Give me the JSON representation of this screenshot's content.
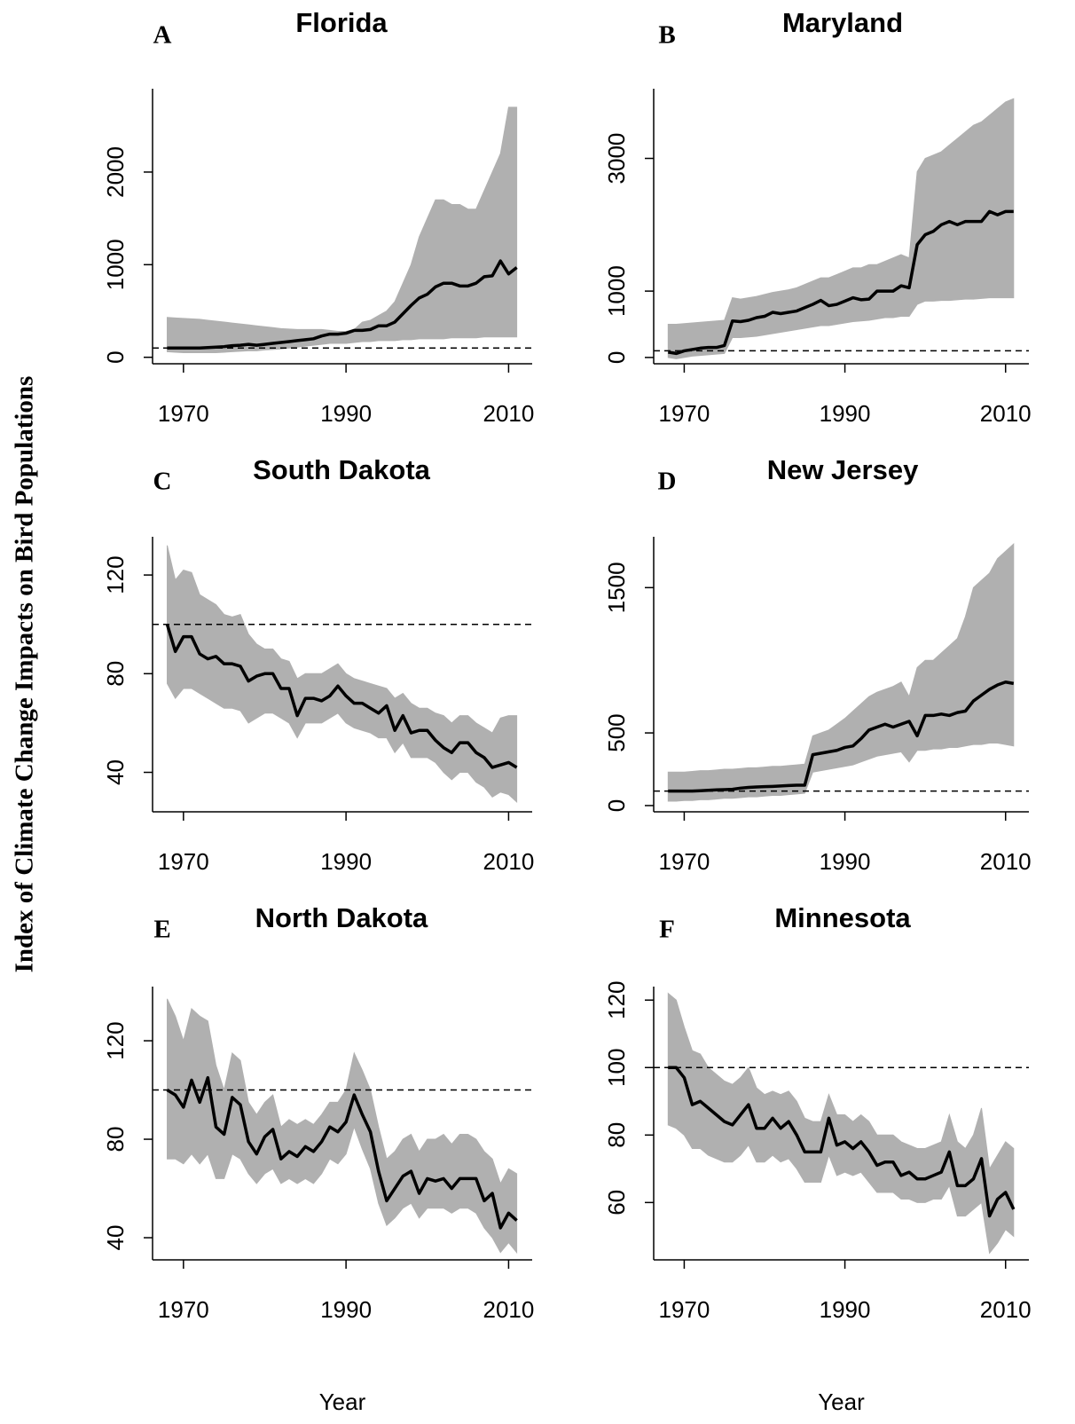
{
  "ylabel": "Index of Climate Change Impacts on Bird Populations",
  "chart_data": [
    {
      "type": "line",
      "label": "A",
      "title": "Florida",
      "color": "#000000",
      "band_color": "#b0b0b0",
      "baseline": 100,
      "x": [
        1968,
        1969,
        1970,
        1971,
        1972,
        1973,
        1974,
        1975,
        1976,
        1977,
        1978,
        1979,
        1980,
        1981,
        1982,
        1983,
        1984,
        1985,
        1986,
        1987,
        1988,
        1989,
        1990,
        1991,
        1992,
        1993,
        1994,
        1995,
        1996,
        1997,
        1998,
        1999,
        2000,
        2001,
        2002,
        2003,
        2004,
        2005,
        2006,
        2007,
        2008,
        2009,
        2010,
        2011
      ],
      "values": [
        100,
        100,
        100,
        100,
        100,
        105,
        110,
        115,
        125,
        130,
        140,
        130,
        140,
        150,
        160,
        170,
        180,
        190,
        200,
        230,
        250,
        250,
        260,
        290,
        290,
        300,
        340,
        340,
        380,
        470,
        560,
        640,
        680,
        760,
        800,
        800,
        770,
        770,
        800,
        870,
        880,
        1040,
        900,
        970
      ],
      "upper": [
        430,
        425,
        420,
        415,
        410,
        400,
        390,
        380,
        370,
        360,
        350,
        340,
        330,
        320,
        310,
        305,
        300,
        300,
        300,
        300,
        290,
        280,
        280,
        300,
        380,
        400,
        450,
        500,
        600,
        800,
        1000,
        1300,
        1500,
        1700,
        1700,
        1650,
        1650,
        1600,
        1600,
        1800,
        2000,
        2200,
        2700,
        2700
      ],
      "lower": [
        60,
        55,
        50,
        50,
        50,
        50,
        50,
        55,
        60,
        65,
        70,
        70,
        80,
        85,
        90,
        100,
        110,
        120,
        130,
        140,
        150,
        150,
        150,
        160,
        170,
        170,
        180,
        180,
        180,
        190,
        190,
        200,
        200,
        200,
        200,
        210,
        210,
        210,
        210,
        220,
        220,
        220,
        220,
        220
      ],
      "xlim": [
        1966.2,
        2012.9
      ],
      "ylim": [
        -70,
        2900
      ],
      "xticks": [
        1970,
        1990,
        2010
      ],
      "yticks": [
        0,
        1000,
        2000
      ]
    },
    {
      "type": "line",
      "label": "B",
      "title": "Maryland",
      "color": "#000000",
      "band_color": "#b0b0b0",
      "baseline": 100,
      "x": [
        1968,
        1969,
        1970,
        1971,
        1972,
        1973,
        1974,
        1975,
        1976,
        1977,
        1978,
        1979,
        1980,
        1981,
        1982,
        1983,
        1984,
        1985,
        1986,
        1987,
        1988,
        1989,
        1990,
        1991,
        1992,
        1993,
        1994,
        1995,
        1996,
        1997,
        1998,
        1999,
        2000,
        2001,
        2002,
        2003,
        2004,
        2005,
        2006,
        2007,
        2008,
        2009,
        2010,
        2011
      ],
      "values": [
        80,
        60,
        100,
        120,
        140,
        150,
        150,
        180,
        550,
        540,
        560,
        600,
        620,
        680,
        660,
        680,
        700,
        750,
        800,
        860,
        780,
        800,
        850,
        900,
        870,
        880,
        1000,
        1000,
        1000,
        1080,
        1050,
        1700,
        1850,
        1900,
        2000,
        2050,
        2000,
        2050,
        2050,
        2050,
        2200,
        2150,
        2200,
        2200
      ],
      "upper": [
        500,
        500,
        510,
        520,
        530,
        540,
        550,
        560,
        900,
        880,
        900,
        920,
        950,
        980,
        1000,
        1020,
        1050,
        1100,
        1150,
        1200,
        1200,
        1250,
        1300,
        1350,
        1350,
        1400,
        1400,
        1450,
        1500,
        1550,
        1500,
        2800,
        3000,
        3050,
        3100,
        3200,
        3300,
        3400,
        3500,
        3550,
        3650,
        3750,
        3850,
        3900
      ],
      "lower": [
        0,
        -20,
        0,
        20,
        30,
        40,
        50,
        60,
        300,
        300,
        310,
        320,
        340,
        360,
        380,
        400,
        420,
        440,
        460,
        480,
        480,
        500,
        520,
        540,
        550,
        560,
        580,
        600,
        600,
        620,
        620,
        800,
        850,
        850,
        860,
        860,
        870,
        880,
        880,
        890,
        900,
        900,
        900,
        900
      ],
      "xlim": [
        1966.2,
        2012.9
      ],
      "ylim": [
        -95,
        4050
      ],
      "xticks": [
        1970,
        1990,
        2010
      ],
      "yticks": [
        0,
        1000,
        3000
      ]
    },
    {
      "type": "line",
      "label": "C",
      "title": "South Dakota",
      "color": "#000000",
      "band_color": "#b0b0b0",
      "baseline": 100,
      "x": [
        1968,
        1969,
        1970,
        1971,
        1972,
        1973,
        1974,
        1975,
        1976,
        1977,
        1978,
        1979,
        1980,
        1981,
        1982,
        1983,
        1984,
        1985,
        1986,
        1987,
        1988,
        1989,
        1990,
        1991,
        1992,
        1993,
        1994,
        1995,
        1996,
        1997,
        1998,
        1999,
        2000,
        2001,
        2002,
        2003,
        2004,
        2005,
        2006,
        2007,
        2008,
        2009,
        2010,
        2011
      ],
      "values": [
        100,
        89,
        95,
        95,
        88,
        86,
        87,
        84,
        84,
        83,
        77,
        79,
        80,
        80,
        74,
        74,
        63,
        70,
        70,
        69,
        71,
        75,
        71,
        68,
        68,
        66,
        64,
        67,
        57,
        63,
        56,
        57,
        57,
        53,
        50,
        48,
        52,
        52,
        48,
        46,
        42,
        43,
        44,
        42
      ],
      "upper": [
        132,
        118,
        122,
        121,
        112,
        110,
        108,
        104,
        103,
        104,
        96,
        92,
        90,
        90,
        86,
        85,
        78,
        80,
        80,
        80,
        82,
        84,
        80,
        78,
        77,
        76,
        75,
        74,
        70,
        72,
        68,
        66,
        66,
        64,
        63,
        60,
        63,
        63,
        60,
        58,
        56,
        62,
        63,
        63
      ],
      "lower": [
        76,
        70,
        74,
        74,
        72,
        70,
        68,
        66,
        66,
        65,
        60,
        62,
        64,
        64,
        62,
        60,
        54,
        60,
        60,
        60,
        62,
        64,
        60,
        58,
        57,
        56,
        54,
        54,
        48,
        52,
        46,
        46,
        46,
        44,
        40,
        37,
        40,
        40,
        36,
        34,
        30,
        32,
        31,
        28
      ],
      "xlim": [
        1966.2,
        2012.9
      ],
      "ylim": [
        24,
        135.5
      ],
      "xticks": [
        1970,
        1990,
        2010
      ],
      "yticks": [
        40,
        80,
        120
      ]
    },
    {
      "type": "line",
      "label": "D",
      "title": "New Jersey",
      "color": "#000000",
      "band_color": "#b0b0b0",
      "baseline": 100,
      "x": [
        1968,
        1969,
        1970,
        1971,
        1972,
        1973,
        1974,
        1975,
        1976,
        1977,
        1978,
        1979,
        1980,
        1981,
        1982,
        1983,
        1984,
        1985,
        1986,
        1987,
        1988,
        1989,
        1990,
        1991,
        1992,
        1993,
        1994,
        1995,
        1996,
        1997,
        1998,
        1999,
        2000,
        2001,
        2002,
        2003,
        2004,
        2005,
        2006,
        2007,
        2008,
        2009,
        2010,
        2011
      ],
      "values": [
        100,
        100,
        100,
        100,
        102,
        105,
        108,
        110,
        112,
        120,
        125,
        128,
        130,
        132,
        135,
        138,
        140,
        140,
        350,
        360,
        370,
        380,
        400,
        410,
        460,
        520,
        540,
        560,
        540,
        560,
        580,
        480,
        620,
        620,
        630,
        620,
        640,
        650,
        720,
        760,
        800,
        830,
        850,
        840
      ],
      "upper": [
        230,
        230,
        230,
        235,
        240,
        240,
        245,
        250,
        250,
        255,
        260,
        260,
        265,
        270,
        270,
        275,
        280,
        285,
        480,
        500,
        520,
        560,
        600,
        650,
        700,
        750,
        780,
        800,
        820,
        850,
        750,
        950,
        1000,
        1000,
        1050,
        1100,
        1150,
        1300,
        1500,
        1550,
        1600,
        1700,
        1750,
        1800
      ],
      "lower": [
        30,
        30,
        35,
        35,
        40,
        40,
        45,
        50,
        50,
        55,
        60,
        60,
        65,
        70,
        70,
        75,
        80,
        85,
        230,
        240,
        250,
        260,
        270,
        280,
        300,
        320,
        340,
        350,
        360,
        370,
        300,
        380,
        380,
        390,
        390,
        400,
        400,
        410,
        420,
        420,
        430,
        430,
        420,
        410
      ],
      "xlim": [
        1966.2,
        2012.9
      ],
      "ylim": [
        -43,
        1850
      ],
      "xticks": [
        1970,
        1990,
        2010
      ],
      "yticks": [
        0,
        500,
        1500
      ]
    },
    {
      "type": "line",
      "label": "E",
      "title": "North Dakota",
      "color": "#000000",
      "band_color": "#b0b0b0",
      "baseline": 100,
      "xlabel": "Year",
      "x": [
        1968,
        1969,
        1970,
        1971,
        1972,
        1973,
        1974,
        1975,
        1976,
        1977,
        1978,
        1979,
        1980,
        1981,
        1982,
        1983,
        1984,
        1985,
        1986,
        1987,
        1988,
        1989,
        1990,
        1991,
        1992,
        1993,
        1994,
        1995,
        1996,
        1997,
        1998,
        1999,
        2000,
        2001,
        2002,
        2003,
        2004,
        2005,
        2006,
        2007,
        2008,
        2009,
        2010,
        2011
      ],
      "values": [
        100,
        98,
        93,
        104,
        95,
        105,
        85,
        82,
        97,
        94,
        79,
        74,
        81,
        84,
        72,
        75,
        73,
        77,
        75,
        79,
        85,
        83,
        87,
        98,
        90,
        83,
        67,
        55,
        60,
        65,
        67,
        58,
        64,
        63,
        64,
        60,
        64,
        64,
        64,
        55,
        58,
        44,
        50,
        47
      ],
      "upper": [
        137,
        130,
        120,
        133,
        130,
        128,
        110,
        100,
        115,
        112,
        95,
        90,
        95,
        98,
        85,
        88,
        86,
        88,
        86,
        90,
        95,
        95,
        100,
        115,
        108,
        100,
        85,
        72,
        75,
        80,
        82,
        75,
        80,
        80,
        82,
        78,
        82,
        82,
        80,
        75,
        72,
        62,
        68,
        66
      ],
      "lower": [
        72,
        72,
        70,
        74,
        70,
        74,
        64,
        64,
        74,
        72,
        66,
        62,
        66,
        68,
        62,
        64,
        62,
        64,
        62,
        66,
        72,
        70,
        74,
        85,
        76,
        68,
        54,
        45,
        48,
        52,
        54,
        48,
        52,
        52,
        52,
        50,
        52,
        52,
        50,
        44,
        40,
        34,
        38,
        34
      ],
      "xlim": [
        1966.2,
        2012.9
      ],
      "ylim": [
        31,
        142
      ],
      "xticks": [
        1970,
        1990,
        2010
      ],
      "yticks": [
        40,
        80,
        120
      ]
    },
    {
      "type": "line",
      "label": "F",
      "title": "Minnesota",
      "color": "#000000",
      "band_color": "#b0b0b0",
      "baseline": 100,
      "xlabel": "Year",
      "x": [
        1968,
        1969,
        1970,
        1971,
        1972,
        1973,
        1974,
        1975,
        1976,
        1977,
        1978,
        1979,
        1980,
        1981,
        1982,
        1983,
        1984,
        1985,
        1986,
        1987,
        1988,
        1989,
        1990,
        1991,
        1992,
        1993,
        1994,
        1995,
        1996,
        1997,
        1998,
        1999,
        2000,
        2001,
        2002,
        2003,
        2004,
        2005,
        2006,
        2007,
        2008,
        2009,
        2010,
        2011
      ],
      "values": [
        100,
        100,
        97,
        89,
        90,
        88,
        86,
        84,
        83,
        86,
        89,
        82,
        82,
        85,
        82,
        84,
        80,
        75,
        75,
        75,
        85,
        77,
        78,
        76,
        78,
        75,
        71,
        72,
        72,
        68,
        69,
        67,
        67,
        68,
        69,
        75,
        65,
        65,
        67,
        73,
        56,
        61,
        63,
        58
      ],
      "upper": [
        122,
        120,
        112,
        105,
        104,
        100,
        98,
        96,
        95,
        97,
        100,
        94,
        92,
        93,
        92,
        93,
        90,
        85,
        84,
        84,
        92,
        86,
        86,
        84,
        86,
        84,
        80,
        80,
        80,
        78,
        77,
        76,
        76,
        77,
        78,
        86,
        78,
        76,
        80,
        88,
        70,
        74,
        78,
        76
      ],
      "lower": [
        83,
        82,
        80,
        76,
        76,
        74,
        73,
        72,
        72,
        74,
        77,
        72,
        72,
        74,
        72,
        73,
        70,
        66,
        66,
        66,
        74,
        68,
        69,
        68,
        69,
        66,
        63,
        63,
        63,
        61,
        61,
        60,
        60,
        61,
        61,
        65,
        56,
        56,
        58,
        60,
        45,
        48,
        52,
        50
      ],
      "xlim": [
        1966.2,
        2012.9
      ],
      "ylim": [
        43,
        124
      ],
      "xticks": [
        1970,
        1990,
        2010
      ],
      "yticks": [
        60,
        80,
        100,
        120
      ]
    }
  ]
}
